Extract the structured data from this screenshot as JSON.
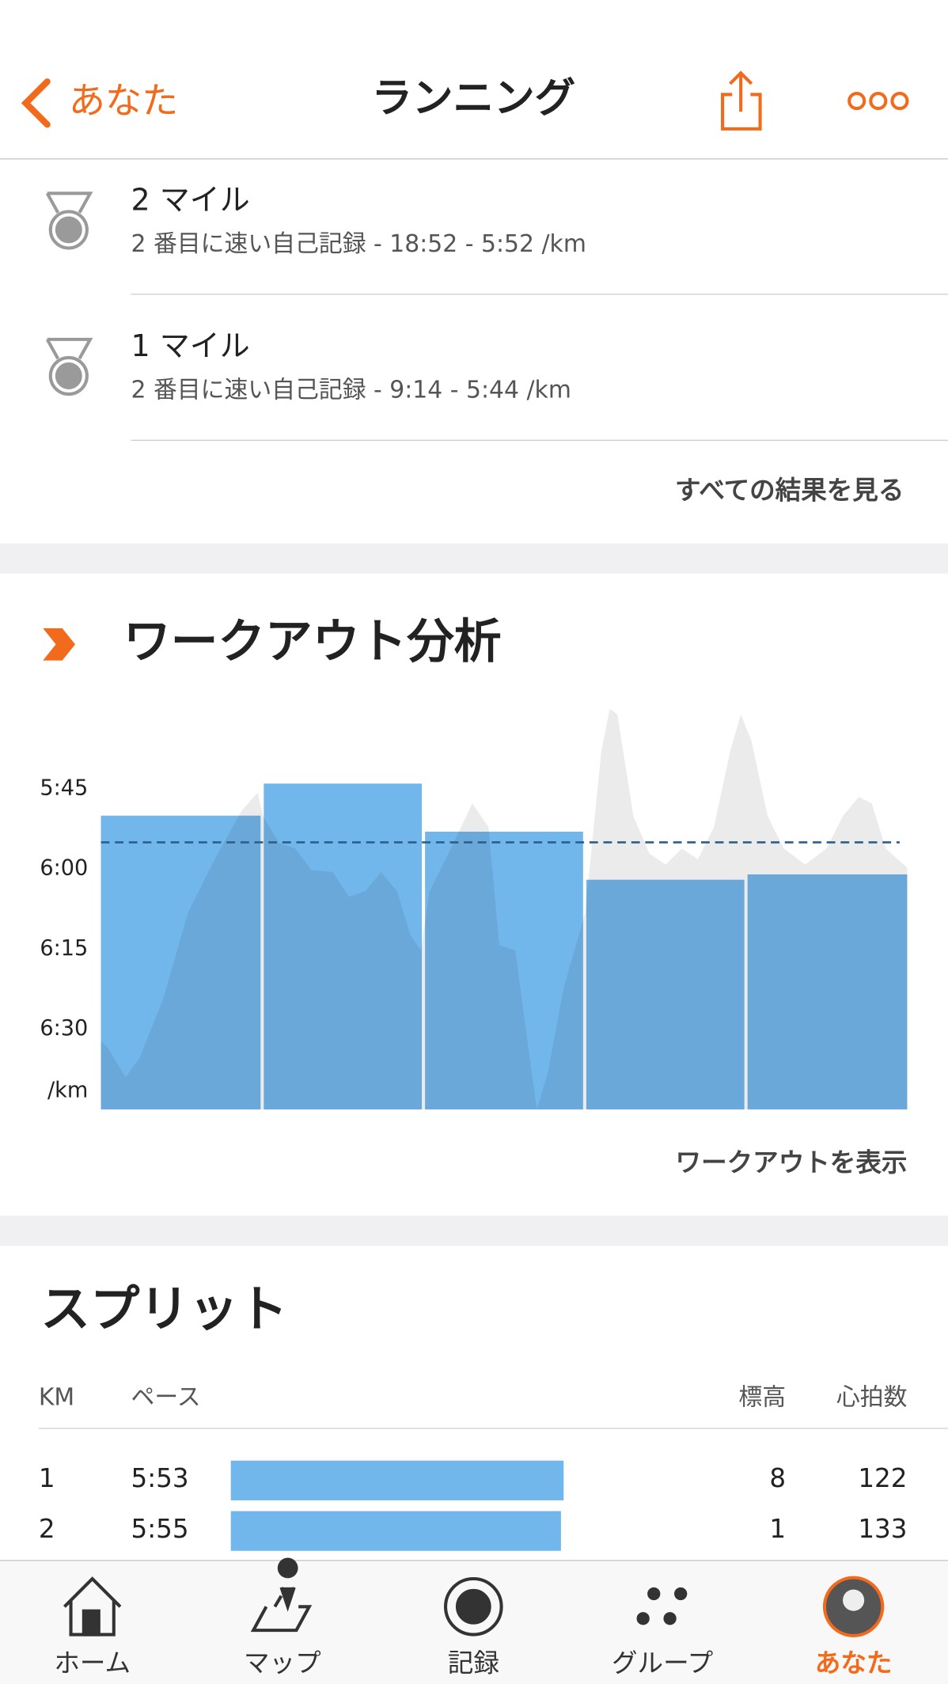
{
  "header": {
    "back": "あなた",
    "title": "ランニング"
  },
  "achievements": [
    {
      "title": "2 マイル",
      "detail": "2 番目に速い自己記録 - 18:52 - 5:52 /km"
    },
    {
      "title": "1 マイル",
      "detail": "2 番目に速い自己記録 - 9:14 - 5:44 /km"
    }
  ],
  "achievements_link": "すべての結果を見る",
  "analysis": {
    "heading": "ワークアウト分析",
    "link": "ワークアウトを表示",
    "chart_data": {
      "type": "bar",
      "y_unit_label": "/km",
      "values": [
        350,
        344,
        353,
        362,
        361
      ],
      "average": 355,
      "color": "#72b7ec",
      "ylim": [
        405,
        330
      ],
      "yticks": [
        {
          "value": 345,
          "label": "5:45"
        },
        {
          "value": 360,
          "label": "6:00"
        },
        {
          "value": 375,
          "label": "6:15"
        },
        {
          "value": 390,
          "label": "6:30"
        }
      ]
    }
  },
  "splits": {
    "heading": "スプリット",
    "columns": [
      "KM",
      "ペース",
      "標高",
      "心拍数"
    ],
    "rows": [
      {
        "km": 1,
        "pace": {
          "value": 353,
          "label": "5:53"
        },
        "elevation": 8,
        "heart_rate": 122
      },
      {
        "km": 2,
        "pace": {
          "value": 355,
          "label": "5:55"
        },
        "elevation": 1,
        "heart_rate": 133
      }
    ]
  },
  "tabs": [
    "ホーム",
    "マップ",
    "記録",
    "グループ",
    "あなた"
  ]
}
